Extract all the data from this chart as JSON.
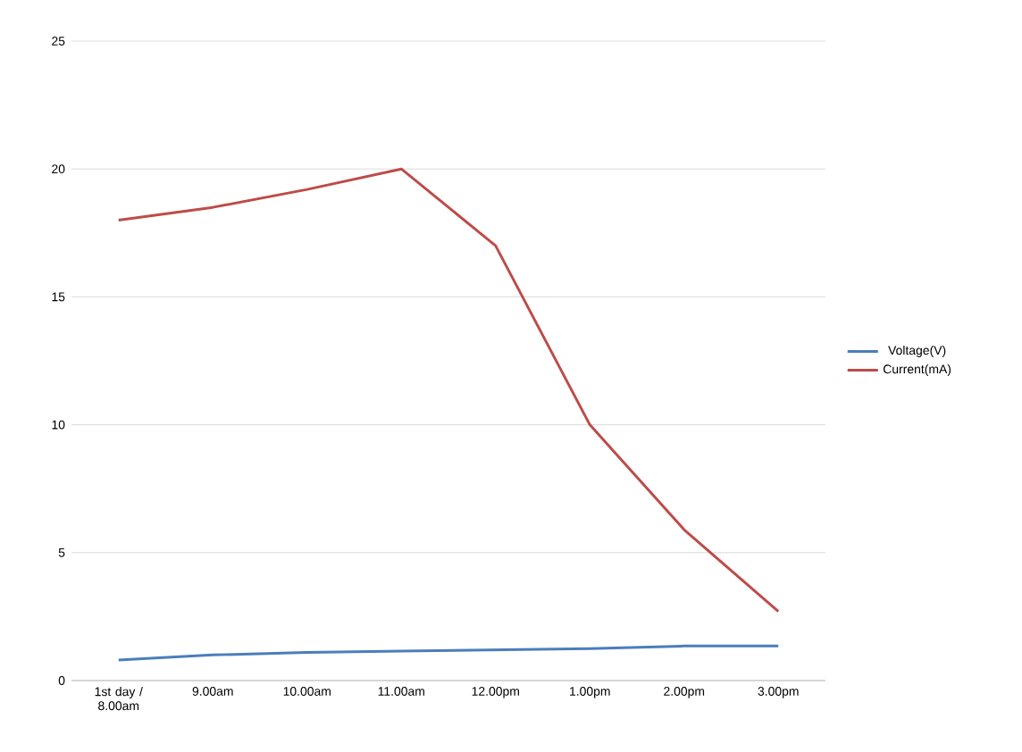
{
  "chart_data": {
    "type": "line",
    "categories": [
      "1st day / 8.00am",
      "9.00am",
      "10.00am",
      "11.00am",
      "12.00pm",
      "1.00pm",
      "2.00pm",
      "3.00pm"
    ],
    "series": [
      {
        "name": "Voltage(V)",
        "color": "#4a7ebb",
        "values": [
          0.8,
          1.0,
          1.1,
          1.15,
          1.2,
          1.25,
          1.35,
          1.35
        ]
      },
      {
        "name": "Current(mA)",
        "color": "#be4b48",
        "values": [
          18,
          18.5,
          19.2,
          20,
          17,
          10,
          5.9,
          2.7
        ]
      }
    ],
    "ylim": [
      0,
      25
    ],
    "yticks": [
      0,
      5,
      10,
      15,
      20,
      25
    ],
    "grid": "y",
    "legend": "right",
    "marker": "none",
    "line_style": "solid"
  }
}
